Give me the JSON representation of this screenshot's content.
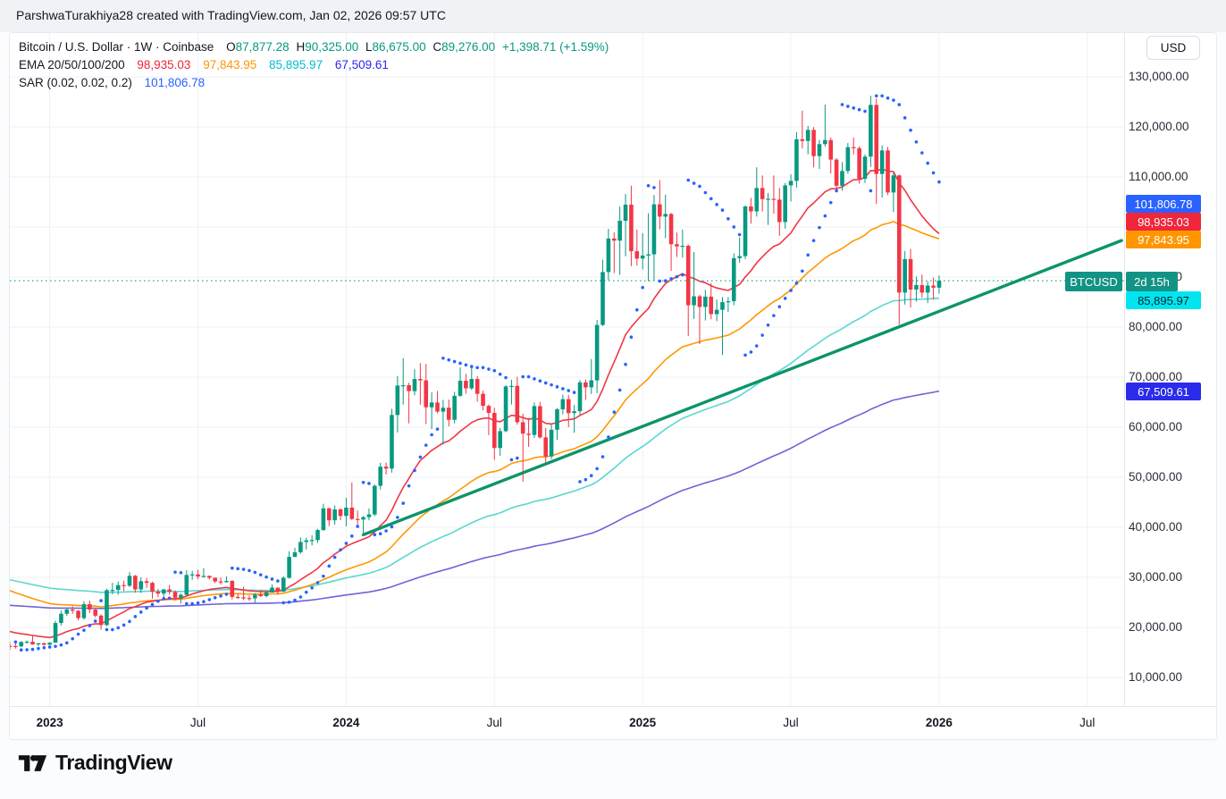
{
  "topbar": {
    "attribution": "ParshwaTurakhiya28 created with TradingView.com, Jan 02, 2026 09:57 UTC"
  },
  "legend": {
    "symbol_row": {
      "title": "Bitcoin / U.S. Dollar · 1W · Coinbase",
      "o_label": "O",
      "o_value": "87,877.28",
      "h_label": "H",
      "h_value": "90,325.00",
      "l_label": "L",
      "l_value": "86,675.00",
      "c_label": "C",
      "c_value": "89,276.00",
      "change": "+1,398.71 (+1.59%)"
    },
    "ema_row": {
      "label": "EMA 20/50/100/200",
      "v20": "98,935.03",
      "v50": "97,843.95",
      "v100": "85,895.97",
      "v200": "67,509.61"
    },
    "sar_row": {
      "label": "SAR (0.02, 0.02, 0.2)",
      "value": "101,806.78"
    }
  },
  "price_scale": {
    "currency": "USD",
    "badges": {
      "sar": "101,806.78",
      "ema20": "98,935.03",
      "ema50": "97,843.95",
      "symbol": "BTCUSD",
      "countdown": "2d 15h",
      "ema100": "85,895.97",
      "ema200": "67,509.61"
    }
  },
  "footer": {
    "brand": "TradingView"
  },
  "chart_data": {
    "type": "candlestick",
    "title": "Bitcoin / U.S. Dollar",
    "timeframe": "1W",
    "exchange": "Coinbase",
    "unit": "USD",
    "grid": true,
    "y_axis": {
      "min": 10000,
      "max": 130000,
      "ticks": [
        {
          "price": 130000,
          "label": "130,000.00"
        },
        {
          "price": 120000,
          "label": "120,000.00"
        },
        {
          "price": 110000,
          "label": "110,000.00"
        },
        {
          "price": 100000,
          "label": "100,000.00"
        },
        {
          "price": 90000,
          "label": "90,000.00"
        },
        {
          "price": 80000,
          "label": "80,000.00"
        },
        {
          "price": 70000,
          "label": "70,000.00"
        },
        {
          "price": 60000,
          "label": "60,000.00"
        },
        {
          "price": 50000,
          "label": "50,000.00"
        },
        {
          "price": 40000,
          "label": "40,000.00"
        },
        {
          "price": 30000,
          "label": "30,000.00"
        },
        {
          "price": 20000,
          "label": "20,000.00"
        },
        {
          "price": 10000,
          "label": "10,000.00"
        }
      ]
    },
    "x_axis": {
      "ticks": [
        {
          "label": "2023",
          "week": 7,
          "major": true
        },
        {
          "label": "Jul",
          "week": 33,
          "major": false
        },
        {
          "label": "2024",
          "week": 59,
          "major": true
        },
        {
          "label": "Jul",
          "week": 85,
          "major": false
        },
        {
          "label": "2025",
          "week": 111,
          "major": true
        },
        {
          "label": "Jul",
          "week": 137,
          "major": false
        },
        {
          "label": "2026",
          "week": 163,
          "major": true
        },
        {
          "label": "Jul",
          "week": 189,
          "major": false
        }
      ]
    },
    "colors": {
      "up": "#089981",
      "down": "#f23645",
      "ema20_line": "#f23645",
      "ema50_line": "#ff9800",
      "ema100_line": "#5ad7d0",
      "ema200_line": "#6f63d6",
      "ema20_accent": "#f0263a",
      "ema50_accent": "#ff9600",
      "ema100_accent": "#00bcd4",
      "ema200_accent": "#2b2bea",
      "ema100_badge_bg": "#00e5f0",
      "ema100_badge_text": "#07262b",
      "sar": "#2962ff",
      "trendline": "#0d9468",
      "price_line": "#089981",
      "grid": "#eef1f5",
      "axis_border": "#e3e6ec",
      "text": "#131722",
      "symbol_badge_bg": "#139384",
      "countdown_badge_bg": "#139384"
    },
    "overlays": {
      "ema": {
        "periods": [
          20,
          50,
          100,
          200
        ],
        "seeds": {
          "20": 19500,
          "50": 27800,
          "100": 29800,
          "200": 24500
        }
      },
      "sar": {
        "start": 0.02,
        "increment": 0.02,
        "max": 0.2
      },
      "trendline": {
        "from_week": 62,
        "from_price": 38510,
        "to_week": 195,
        "to_price": 97300
      },
      "price_line": {
        "price": 89276
      }
    },
    "current_bar": {
      "open": 87877.28,
      "high": 90325.0,
      "low": 86675.0,
      "close": 89276.0,
      "change": 1398.71,
      "change_pct": 1.59
    },
    "candles": [
      [
        16300,
        17100,
        15500,
        16290
      ],
      [
        16290,
        16800,
        15760,
        16220
      ],
      [
        16220,
        17250,
        16050,
        17090
      ],
      [
        17090,
        17420,
        16790,
        17130
      ],
      [
        17130,
        18390,
        16530,
        16600
      ],
      [
        16600,
        16850,
        16280,
        16840
      ],
      [
        16840,
        16990,
        16330,
        16540
      ],
      [
        16540,
        17040,
        16490,
        16950
      ],
      [
        16950,
        21310,
        16910,
        20880
      ],
      [
        20880,
        23370,
        20400,
        22720
      ],
      [
        22720,
        23810,
        22290,
        23560
      ],
      [
        23560,
        24250,
        22720,
        23330
      ],
      [
        23330,
        23450,
        21400,
        21860
      ],
      [
        21860,
        25250,
        21560,
        24630
      ],
      [
        24630,
        25340,
        22860,
        23560
      ],
      [
        23560,
        23920,
        21980,
        22350
      ],
      [
        22350,
        22650,
        19550,
        20460
      ],
      [
        20460,
        27750,
        20300,
        27440
      ],
      [
        27440,
        28900,
        26600,
        27480
      ],
      [
        27480,
        29180,
        26510,
        28460
      ],
      [
        28460,
        29350,
        27250,
        28330
      ],
      [
        28330,
        31050,
        28050,
        30310
      ],
      [
        30310,
        30480,
        26940,
        27590
      ],
      [
        27590,
        29990,
        26870,
        29230
      ],
      [
        29230,
        29870,
        27890,
        28900
      ],
      [
        28900,
        29150,
        25750,
        27160
      ],
      [
        27160,
        27680,
        26060,
        26750
      ],
      [
        26750,
        27700,
        25850,
        27590
      ],
      [
        27590,
        28500,
        26550,
        27070
      ],
      [
        27070,
        27420,
        25350,
        25940
      ],
      [
        25940,
        26800,
        24750,
        26510
      ],
      [
        26510,
        31400,
        26300,
        30480
      ],
      [
        30480,
        31300,
        29500,
        30590
      ],
      [
        30590,
        31500,
        29650,
        30170
      ],
      [
        30170,
        31850,
        29950,
        30290
      ],
      [
        30290,
        30380,
        29550,
        29910
      ],
      [
        29910,
        29960,
        28860,
        29180
      ],
      [
        29180,
        30000,
        28550,
        29040
      ],
      [
        29040,
        30180,
        28950,
        29280
      ],
      [
        29280,
        29430,
        25600,
        26100
      ],
      [
        26100,
        26850,
        25660,
        26010
      ],
      [
        26010,
        28140,
        25470,
        25870
      ],
      [
        25870,
        26420,
        25330,
        25810
      ],
      [
        25810,
        26880,
        24930,
        26530
      ],
      [
        26530,
        27480,
        26100,
        26250
      ],
      [
        26250,
        27320,
        26010,
        26960
      ],
      [
        26960,
        28590,
        26950,
        27940
      ],
      [
        27940,
        27990,
        26540,
        27160
      ],
      [
        27160,
        30220,
        27060,
        29910
      ],
      [
        29910,
        35190,
        29750,
        34090
      ],
      [
        34090,
        35920,
        34010,
        35010
      ],
      [
        35010,
        37970,
        34700,
        37070
      ],
      [
        37070,
        37940,
        35570,
        37390
      ],
      [
        37390,
        38420,
        36380,
        37450
      ],
      [
        37450,
        39690,
        36870,
        39460
      ],
      [
        39460,
        44700,
        39280,
        43790
      ],
      [
        43790,
        43930,
        40250,
        41400
      ],
      [
        41400,
        44380,
        40540,
        43580
      ],
      [
        43580,
        43800,
        41430,
        42270
      ],
      [
        42270,
        45880,
        40180,
        43940
      ],
      [
        43940,
        48970,
        41450,
        41660
      ],
      [
        41660,
        43350,
        40280,
        41550
      ],
      [
        41550,
        42240,
        38510,
        42030
      ],
      [
        42030,
        43780,
        41390,
        42570
      ],
      [
        42570,
        48590,
        42220,
        48290
      ],
      [
        48290,
        52880,
        47570,
        52120
      ],
      [
        52120,
        52940,
        50540,
        51730
      ],
      [
        51730,
        63680,
        50920,
        62440
      ],
      [
        62440,
        70180,
        58950,
        68330
      ],
      [
        68330,
        73790,
        64520,
        68390
      ],
      [
        68390,
        68900,
        60770,
        67210
      ],
      [
        67210,
        71580,
        66380,
        69640
      ],
      [
        69640,
        72800,
        64490,
        69360
      ],
      [
        69360,
        72650,
        60630,
        63980
      ],
      [
        63980,
        66980,
        59620,
        64940
      ],
      [
        64940,
        67230,
        62780,
        63110
      ],
      [
        63110,
        65470,
        56510,
        63890
      ],
      [
        63890,
        65510,
        60170,
        61480
      ],
      [
        61480,
        67080,
        60750,
        66270
      ],
      [
        66270,
        71950,
        66060,
        69270
      ],
      [
        69270,
        70650,
        66670,
        67760
      ],
      [
        67760,
        71910,
        67450,
        69640
      ],
      [
        69640,
        70190,
        65080,
        66670
      ],
      [
        66670,
        67290,
        63360,
        64260
      ],
      [
        64260,
        64550,
        58400,
        62850
      ],
      [
        62850,
        63860,
        53500,
        55850
      ],
      [
        55850,
        59850,
        54260,
        59210
      ],
      [
        59210,
        68370,
        58990,
        68150
      ],
      [
        68150,
        69480,
        64530,
        68250
      ],
      [
        68250,
        70080,
        60480,
        61000
      ],
      [
        61000,
        62720,
        49110,
        58720
      ],
      [
        58720,
        61840,
        56080,
        58460
      ],
      [
        58460,
        64950,
        57860,
        64220
      ],
      [
        64220,
        65060,
        57740,
        57970
      ],
      [
        57970,
        59830,
        52530,
        54160
      ],
      [
        54160,
        60620,
        53620,
        59490
      ],
      [
        59490,
        63850,
        57490,
        63580
      ],
      [
        63580,
        66480,
        62560,
        65600
      ],
      [
        65600,
        66460,
        59990,
        62820
      ],
      [
        62820,
        64470,
        58890,
        63190
      ],
      [
        63190,
        69400,
        62450,
        68960
      ],
      [
        68960,
        69520,
        65460,
        67970
      ],
      [
        67970,
        73620,
        66650,
        69360
      ],
      [
        69360,
        81460,
        66810,
        80430
      ],
      [
        80430,
        93460,
        80220,
        91000
      ],
      [
        91000,
        99640,
        89380,
        97700
      ],
      [
        97700,
        98930,
        90790,
        97280
      ],
      [
        97280,
        104090,
        90470,
        101240
      ],
      [
        101240,
        106590,
        94150,
        104470
      ],
      [
        104470,
        108260,
        92170,
        95160
      ],
      [
        95160,
        99490,
        92290,
        93690
      ],
      [
        93690,
        98770,
        91530,
        94300
      ],
      [
        94300,
        102720,
        89190,
        94540
      ],
      [
        94540,
        106410,
        89260,
        104540
      ],
      [
        104540,
        109360,
        99530,
        102080
      ],
      [
        102080,
        106480,
        97770,
        102600
      ],
      [
        102600,
        102820,
        91230,
        96560
      ],
      [
        96560,
        98900,
        94000,
        96120
      ],
      [
        96120,
        99480,
        93870,
        96260
      ],
      [
        96260,
        96500,
        78230,
        84370
      ],
      [
        84370,
        94980,
        81630,
        86150
      ],
      [
        86150,
        86470,
        76610,
        84030
      ],
      [
        84030,
        87470,
        81330,
        86090
      ],
      [
        86090,
        88770,
        81560,
        82590
      ],
      [
        82590,
        85510,
        81180,
        83460
      ],
      [
        83460,
        86000,
        74420,
        84990
      ],
      [
        84990,
        85990,
        83020,
        85170
      ],
      [
        85170,
        94720,
        84360,
        93780
      ],
      [
        93780,
        97890,
        92840,
        94180
      ],
      [
        94180,
        104320,
        93570,
        104110
      ],
      [
        104110,
        105820,
        100680,
        103120
      ],
      [
        103120,
        111920,
        102080,
        107790
      ],
      [
        107790,
        110300,
        103110,
        105570
      ],
      [
        105570,
        106790,
        100430,
        105640
      ],
      [
        105640,
        110290,
        102660,
        105470
      ],
      [
        105470,
        107790,
        98240,
        100990
      ],
      [
        100990,
        108800,
        99680,
        108310
      ],
      [
        108310,
        110530,
        105120,
        109220
      ],
      [
        109220,
        118950,
        107850,
        117530
      ],
      [
        117530,
        123240,
        115690,
        117190
      ],
      [
        117190,
        120180,
        114530,
        119400
      ],
      [
        119400,
        119970,
        111920,
        114170
      ],
      [
        114170,
        117420,
        111570,
        116560
      ],
      [
        116560,
        124460,
        116080,
        117370
      ],
      [
        117370,
        117880,
        110680,
        113470
      ],
      [
        113470,
        113780,
        107270,
        108240
      ],
      [
        108240,
        112960,
        107240,
        111190
      ],
      [
        111190,
        116780,
        110650,
        115950
      ],
      [
        115950,
        117860,
        114500,
        115750
      ],
      [
        115750,
        116100,
        108660,
        109630
      ],
      [
        109630,
        114480,
        108790,
        114070
      ],
      [
        114070,
        126200,
        112000,
        124400
      ],
      [
        124400,
        125690,
        104600,
        110600
      ],
      [
        110600,
        116300,
        105900,
        115300
      ],
      [
        115300,
        116000,
        106400,
        106900
      ],
      [
        106900,
        111000,
        103000,
        110300
      ],
      [
        110300,
        110500,
        80500,
        86900
      ],
      [
        86900,
        95200,
        84500,
        93600
      ],
      [
        93600,
        95600,
        83900,
        87500
      ],
      [
        87500,
        90100,
        85100,
        88400
      ],
      [
        88400,
        90500,
        85900,
        86900
      ],
      [
        86900,
        89100,
        84800,
        88300
      ],
      [
        88300,
        89900,
        85500,
        87877
      ],
      [
        87877,
        90325,
        86675,
        89276
      ]
    ]
  }
}
